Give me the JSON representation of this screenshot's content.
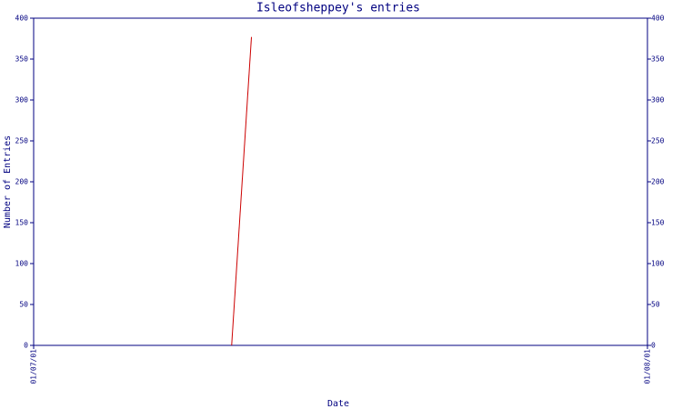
{
  "chart_data": {
    "type": "line",
    "title": "Isleofsheppey's entries",
    "x_label": "Date",
    "y_label": "Number of Entries",
    "x": [
      "11/07/01",
      "12/07/01"
    ],
    "series": [
      {
        "name": "Entries",
        "color": "#cc0000",
        "values": [
          0,
          377
        ]
      }
    ],
    "xlim": [
      "01/07/01",
      "01/08/01"
    ],
    "xticks": [
      "01/07/01",
      "01/08/01"
    ],
    "ylim": [
      0,
      400
    ],
    "yticks": [
      0,
      50,
      100,
      150,
      200,
      250,
      300,
      350,
      400
    ],
    "y2lim": [
      0,
      400
    ],
    "y2ticks": [
      0,
      50,
      100,
      150,
      200,
      250,
      300,
      350,
      400
    ],
    "axis_color": "#000080",
    "grid": false
  }
}
